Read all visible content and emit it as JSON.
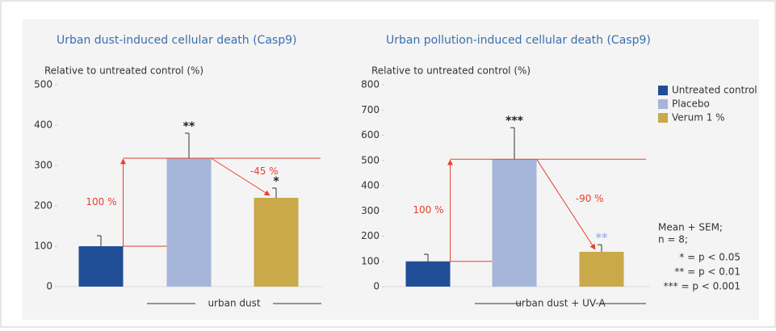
{
  "legend": [
    {
      "name": "Untreated control",
      "color": "#1f4e96"
    },
    {
      "name": "Placebo",
      "color": "#a6b5da"
    },
    {
      "name": "Verum 1 %",
      "color": "#c9a94a"
    }
  ],
  "notes": [
    "Mean + SEM;",
    "n = 8;",
    "* = p < 0.05",
    "** = p < 0.01",
    "*** = p < 0.001"
  ],
  "chart_data": [
    {
      "type": "bar",
      "title": "Urban dust-induced cellular death (Casp9)",
      "y_label": "Relative to untreated control (%)",
      "group_label": "urban dust",
      "values": [
        100,
        318,
        220
      ],
      "errors": [
        26,
        62,
        24
      ],
      "significance": [
        null,
        "**",
        "*"
      ],
      "significance_colors": [
        null,
        "#222",
        "#222"
      ],
      "annotations": [
        "100 %",
        "-45 %"
      ],
      "ylim": [
        0,
        500
      ],
      "yticks": [
        0,
        100,
        200,
        300,
        400,
        500
      ]
    },
    {
      "type": "bar",
      "title": "Urban pollution-induced cellular death (Casp9)",
      "y_label": "Relative to untreated control (%)",
      "group_label": "urban dust + UV-A",
      "values": [
        100,
        505,
        138
      ],
      "errors": [
        28,
        125,
        28
      ],
      "significance": [
        null,
        "***",
        "**"
      ],
      "significance_colors": [
        null,
        "#222",
        "#a6b5da"
      ],
      "annotations": [
        "100 %",
        "-90 %"
      ],
      "ylim": [
        0,
        800
      ],
      "yticks": [
        0,
        100,
        200,
        300,
        400,
        500,
        600,
        700,
        800
      ]
    }
  ]
}
